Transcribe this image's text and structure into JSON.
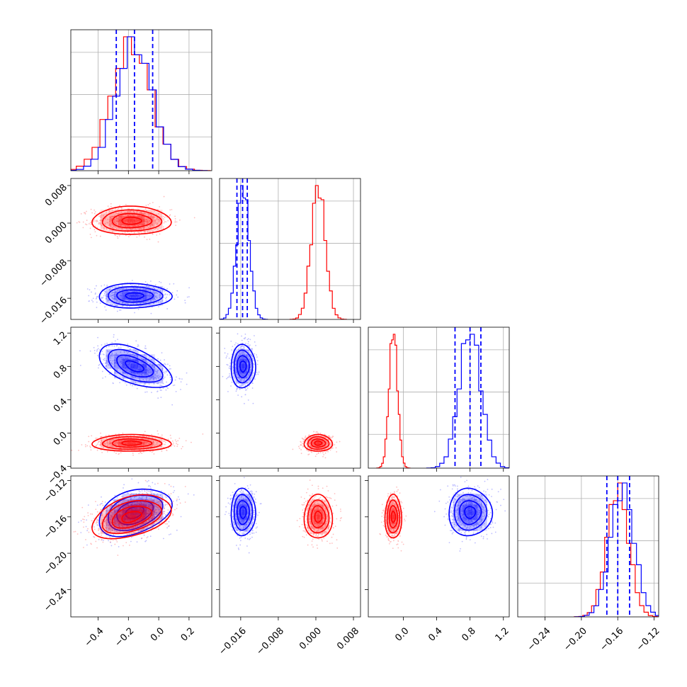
{
  "colors": {
    "blue": "#0000ff",
    "red": "#ff0000",
    "grid": "#b0b0b0"
  },
  "chart_data": {
    "type": "corner",
    "params": [
      {
        "range": [
          -0.58,
          0.35
        ],
        "ticks": [
          -0.4,
          -0.2,
          0.0,
          0.2
        ],
        "tick_labels": [
          "−0.4",
          "−0.2",
          "0.0",
          "0.2"
        ]
      },
      {
        "range": [
          -0.0205,
          0.0095
        ],
        "ticks": [
          -0.016,
          -0.008,
          0.0,
          0.008
        ],
        "tick_labels": [
          "−0.016",
          "−0.008",
          "0.000",
          "0.008"
        ]
      },
      {
        "range": [
          -0.42,
          1.27
        ],
        "ticks": [
          0.0,
          0.4,
          0.8,
          1.2
        ],
        "tick_labels": [
          "0.0",
          "0.4",
          "0.8",
          "1.2"
        ],
        "y_tick_labels": [
          "−0.4",
          "0.0",
          "0.4",
          "0.8",
          "1.2"
        ],
        "y_ticks": [
          -0.4,
          0.0,
          0.4,
          0.8,
          1.2
        ]
      },
      {
        "range": [
          -0.27,
          -0.115
        ],
        "ticks": [
          -0.24,
          -0.2,
          -0.16,
          -0.12
        ],
        "tick_labels": [
          "−0.24",
          "−0.20",
          "−0.16",
          "−0.12"
        ],
        "y_ticks": [
          -0.12,
          -0.16,
          -0.2,
          -0.24
        ],
        "y_tick_labels": [
          "−0.12",
          "−0.16",
          "−0.20",
          "−0.24"
        ]
      }
    ],
    "series": [
      {
        "color": "blue",
        "mean": [
          -0.16,
          -0.0155,
          0.8,
          -0.155
        ],
        "std": [
          0.12,
          0.0013,
          0.13,
          0.013
        ],
        "quantiles": [
          [
            -0.28,
            -0.16,
            -0.04
          ],
          [
            -0.0168,
            -0.0156,
            -0.0146
          ],
          [
            0.62,
            0.8,
            0.93
          ],
          [
            -0.172,
            -0.16,
            -0.147
          ]
        ],
        "corr": {
          "0-2": -0.55,
          "0-3": 0.35
        }
      },
      {
        "color": "red",
        "mean": [
          -0.18,
          0.0005,
          -0.12,
          -0.16
        ],
        "std": [
          0.13,
          0.0015,
          0.05,
          0.012
        ],
        "corr": {
          "0-3": 0.4
        }
      }
    ],
    "grid": true
  }
}
